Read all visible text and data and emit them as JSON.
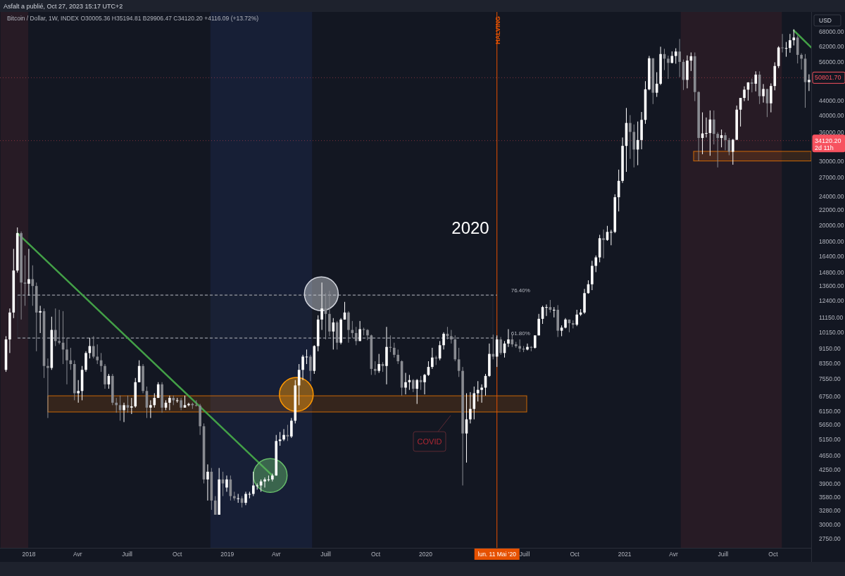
{
  "chart_data": {
    "type": "candlestick",
    "title": "Asfalt a publié, Oct 27, 2023 15:17 UTC+2",
    "subtitle": "Bitcoin / Dollar, 1W, INDEX  O30005.36  H35194.81  B29906.47  C34120.20  +4116.09 (+13.72%)",
    "ylabel": "USD",
    "log": true,
    "xlim": [
      "2017-11-09",
      "2021-12-10"
    ],
    "ylim": [
      2595,
      77000
    ],
    "yticks": [
      {
        "value": 2750,
        "label": "2750.00"
      },
      {
        "value": 3000,
        "label": "3000.00"
      },
      {
        "value": 3280,
        "label": "3280.00"
      },
      {
        "value": 3580,
        "label": "3580.00"
      },
      {
        "value": 3900,
        "label": "3900.00"
      },
      {
        "value": 4250,
        "label": "4250.00"
      },
      {
        "value": 4650,
        "label": "4650.00"
      },
      {
        "value": 5150,
        "label": "5150.00"
      },
      {
        "value": 5650,
        "label": "5650.00"
      },
      {
        "value": 6150,
        "label": "6150.00"
      },
      {
        "value": 6750,
        "label": "6750.00"
      },
      {
        "value": 7550,
        "label": "7550.00"
      },
      {
        "value": 8350,
        "label": "8350.00"
      },
      {
        "value": 9150,
        "label": "9150.00"
      },
      {
        "value": 10150,
        "label": "10150.00"
      },
      {
        "value": 11150,
        "label": "11150.00"
      },
      {
        "value": 12400,
        "label": "12400.00"
      },
      {
        "value": 13600,
        "label": "13600.00"
      },
      {
        "value": 14800,
        "label": "14800.00"
      },
      {
        "value": 16400,
        "label": "16400.00"
      },
      {
        "value": 18000,
        "label": "18000.00"
      },
      {
        "value": 20000,
        "label": "20000.00"
      },
      {
        "value": 22000,
        "label": "22000.00"
      },
      {
        "value": 24000,
        "label": "24000.00"
      },
      {
        "value": 27000,
        "label": "27000.00"
      },
      {
        "value": 30000,
        "label": "30000.00"
      },
      {
        "value": 36000,
        "label": "36000.00"
      },
      {
        "value": 40000,
        "label": "40000.00"
      },
      {
        "value": 44000,
        "label": "44000.00"
      },
      {
        "value": 56000,
        "label": "56000.00"
      },
      {
        "value": 62000,
        "label": "62000.00"
      },
      {
        "value": 68000,
        "label": "68000.00"
      }
    ],
    "xticks": [
      {
        "value": "2018-01-01",
        "label": "2018"
      },
      {
        "value": "2018-04-01",
        "label": "Avr"
      },
      {
        "value": "2018-07-01",
        "label": "Juill"
      },
      {
        "value": "2018-10-01",
        "label": "Oct"
      },
      {
        "value": "2019-01-01",
        "label": "2019"
      },
      {
        "value": "2019-04-01",
        "label": "Avr"
      },
      {
        "value": "2019-07-01",
        "label": "Juill"
      },
      {
        "value": "2019-10-01",
        "label": "Oct"
      },
      {
        "value": "2020-01-01",
        "label": "2020"
      },
      {
        "value": "2020-04-01",
        "label": null
      },
      {
        "value": "2020-07-01",
        "label": "Juill"
      },
      {
        "value": "2020-10-01",
        "label": "Oct"
      },
      {
        "value": "2021-01-01",
        "label": "2021"
      },
      {
        "value": "2021-04-01",
        "label": "Avr"
      },
      {
        "value": "2021-07-01",
        "label": "Juill"
      },
      {
        "value": "2021-10-01",
        "label": "Oct"
      }
    ],
    "x": [
      "2017-11-20",
      "2017-11-27",
      "2017-12-04",
      "2017-12-11",
      "2017-12-18",
      "2017-12-25",
      "2018-01-01",
      "2018-01-08",
      "2018-01-15",
      "2018-01-22",
      "2018-01-29",
      "2018-02-05",
      "2018-02-12",
      "2018-02-19",
      "2018-02-26",
      "2018-03-05",
      "2018-03-12",
      "2018-03-19",
      "2018-03-26",
      "2018-04-02",
      "2018-04-09",
      "2018-04-16",
      "2018-04-23",
      "2018-04-30",
      "2018-05-07",
      "2018-05-14",
      "2018-05-21",
      "2018-05-28",
      "2018-06-04",
      "2018-06-11",
      "2018-06-18",
      "2018-06-25",
      "2018-07-02",
      "2018-07-09",
      "2018-07-16",
      "2018-07-23",
      "2018-07-30",
      "2018-08-06",
      "2018-08-13",
      "2018-08-20",
      "2018-08-27",
      "2018-09-03",
      "2018-09-10",
      "2018-09-17",
      "2018-09-24",
      "2018-10-01",
      "2018-10-08",
      "2018-10-15",
      "2018-10-22",
      "2018-10-29",
      "2018-11-05",
      "2018-11-12",
      "2018-11-19",
      "2018-11-26",
      "2018-12-03",
      "2018-12-10",
      "2018-12-17",
      "2018-12-24",
      "2018-12-31",
      "2019-01-07",
      "2019-01-14",
      "2019-01-21",
      "2019-01-28",
      "2019-02-04",
      "2019-02-11",
      "2019-02-18",
      "2019-02-25",
      "2019-03-04",
      "2019-03-11",
      "2019-03-18",
      "2019-03-25",
      "2019-04-01",
      "2019-04-08",
      "2019-04-15",
      "2019-04-22",
      "2019-04-29",
      "2019-05-06",
      "2019-05-13",
      "2019-05-20",
      "2019-05-27",
      "2019-06-03",
      "2019-06-10",
      "2019-06-17",
      "2019-06-24",
      "2019-07-01",
      "2019-07-08",
      "2019-07-15",
      "2019-07-22",
      "2019-07-29",
      "2019-08-05",
      "2019-08-12",
      "2019-08-19",
      "2019-08-26",
      "2019-09-02",
      "2019-09-09",
      "2019-09-16",
      "2019-09-23",
      "2019-09-30",
      "2019-10-07",
      "2019-10-14",
      "2019-10-21",
      "2019-10-28",
      "2019-11-04",
      "2019-11-11",
      "2019-11-18",
      "2019-11-25",
      "2019-12-02",
      "2019-12-09",
      "2019-12-16",
      "2019-12-23",
      "2019-12-30",
      "2020-01-06",
      "2020-01-13",
      "2020-01-20",
      "2020-01-27",
      "2020-02-03",
      "2020-02-10",
      "2020-02-17",
      "2020-02-24",
      "2020-03-02",
      "2020-03-09",
      "2020-03-16",
      "2020-03-23",
      "2020-03-30",
      "2020-04-06",
      "2020-04-13",
      "2020-04-20",
      "2020-04-27",
      "2020-05-04",
      "2020-05-11",
      "2020-05-18",
      "2020-05-25",
      "2020-06-01",
      "2020-06-08",
      "2020-06-15",
      "2020-06-22",
      "2020-06-29",
      "2020-07-06",
      "2020-07-13",
      "2020-07-20",
      "2020-07-27",
      "2020-08-03",
      "2020-08-10",
      "2020-08-17",
      "2020-08-24",
      "2020-08-31",
      "2020-09-07",
      "2020-09-14",
      "2020-09-21",
      "2020-09-28",
      "2020-10-05",
      "2020-10-12",
      "2020-10-19",
      "2020-10-26",
      "2020-11-02",
      "2020-11-09",
      "2020-11-16",
      "2020-11-23",
      "2020-11-30",
      "2020-12-07",
      "2020-12-14",
      "2020-12-21",
      "2020-12-28",
      "2021-01-04",
      "2021-01-11",
      "2021-01-18",
      "2021-01-25",
      "2021-02-01",
      "2021-02-08",
      "2021-02-15",
      "2021-02-22",
      "2021-03-01",
      "2021-03-08",
      "2021-03-15",
      "2021-03-22",
      "2021-03-29",
      "2021-04-05",
      "2021-04-12",
      "2021-04-19",
      "2021-04-26",
      "2021-05-03",
      "2021-05-10",
      "2021-05-17",
      "2021-05-24",
      "2021-05-31",
      "2021-06-07",
      "2021-06-14",
      "2021-06-21",
      "2021-06-28",
      "2021-07-05",
      "2021-07-12",
      "2021-07-19",
      "2021-07-26",
      "2021-08-02",
      "2021-08-09",
      "2021-08-16",
      "2021-08-23",
      "2021-08-30",
      "2021-09-06",
      "2021-09-13",
      "2021-09-20",
      "2021-09-27",
      "2021-10-04",
      "2021-10-11",
      "2021-10-18",
      "2021-10-25",
      "2021-11-01",
      "2021-11-08",
      "2021-11-15",
      "2021-11-22",
      "2021-11-29",
      "2021-12-06"
    ],
    "ohlc": [
      [
        8000,
        9900,
        7900,
        9700
      ],
      [
        9700,
        11800,
        8900,
        11500
      ],
      [
        11500,
        17200,
        11100,
        15000
      ],
      [
        15000,
        19700,
        14800,
        19000
      ],
      [
        19000,
        19200,
        11000,
        13900
      ],
      [
        13900,
        16500,
        12000,
        13800
      ],
      [
        13800,
        17200,
        12800,
        14200
      ],
      [
        14200,
        15500,
        12000,
        13600
      ],
      [
        13600,
        13900,
        9000,
        11500
      ],
      [
        11500,
        12000,
        10100,
        11600
      ],
      [
        11600,
        11800,
        7600,
        8200
      ],
      [
        8200,
        8600,
        5900,
        8100
      ],
      [
        8100,
        11200,
        8000,
        10300
      ],
      [
        10300,
        11800,
        9300,
        9600
      ],
      [
        9600,
        11700,
        9400,
        9500
      ],
      [
        9500,
        11600,
        8300,
        9100
      ],
      [
        9100,
        9800,
        7300,
        8500
      ],
      [
        8500,
        9200,
        8000,
        8300
      ],
      [
        8300,
        8500,
        6600,
        6900
      ],
      [
        6900,
        7500,
        6500,
        7000
      ],
      [
        7000,
        8200,
        6600,
        8000
      ],
      [
        8000,
        9000,
        7900,
        8900
      ],
      [
        8900,
        9800,
        8600,
        9300
      ],
      [
        9300,
        9900,
        8600,
        8700
      ],
      [
        8700,
        9400,
        8300,
        8500
      ],
      [
        8500,
        8900,
        7900,
        8200
      ],
      [
        8200,
        8300,
        7100,
        7300
      ],
      [
        7300,
        7800,
        7100,
        7700
      ],
      [
        7700,
        7800,
        6400,
        6500
      ],
      [
        6500,
        6700,
        6100,
        6400
      ],
      [
        6400,
        6800,
        5800,
        6200
      ],
      [
        6200,
        6500,
        5750,
        6400
      ],
      [
        6400,
        6800,
        6100,
        6300
      ],
      [
        6300,
        6700,
        6050,
        6350
      ],
      [
        6350,
        7600,
        6300,
        7400
      ],
      [
        7400,
        8500,
        7400,
        8200
      ],
      [
        8200,
        8300,
        6900,
        7000
      ],
      [
        7000,
        7200,
        5900,
        6300
      ],
      [
        6300,
        6600,
        5900,
        6400
      ],
      [
        6400,
        6900,
        6300,
        6700
      ],
      [
        6700,
        7400,
        6700,
        7300
      ],
      [
        7300,
        7400,
        6100,
        6300
      ],
      [
        6300,
        6600,
        6200,
        6500
      ],
      [
        6500,
        6800,
        6200,
        6700
      ],
      [
        6700,
        6800,
        6400,
        6600
      ],
      [
        6600,
        6700,
        6500,
        6600
      ],
      [
        6600,
        6700,
        6200,
        6300
      ],
      [
        6300,
        6800,
        6300,
        6400
      ],
      [
        6400,
        6500,
        6350,
        6450
      ],
      [
        6450,
        6500,
        6250,
        6400
      ],
      [
        6400,
        6600,
        6350,
        6380
      ],
      [
        6380,
        6450,
        5300,
        5600
      ],
      [
        5600,
        5700,
        3900,
        4000
      ],
      [
        4000,
        4400,
        3500,
        4200
      ],
      [
        4200,
        4300,
        3300,
        3500
      ],
      [
        3500,
        3600,
        3200,
        3200
      ],
      [
        3200,
        4300,
        3200,
        4000
      ],
      [
        4000,
        4200,
        3600,
        3900
      ],
      [
        3800,
        4100,
        3700,
        4000
      ],
      [
        4000,
        4100,
        3500,
        3600
      ],
      [
        3600,
        3700,
        3500,
        3550
      ],
      [
        3550,
        3650,
        3450,
        3550
      ],
      [
        3550,
        3600,
        3350,
        3450
      ],
      [
        3450,
        3700,
        3400,
        3650
      ],
      [
        3650,
        3700,
        3550,
        3650
      ],
      [
        3650,
        4200,
        3600,
        3850
      ],
      [
        3850,
        3900,
        3750,
        3850
      ],
      [
        3850,
        4000,
        3700,
        3950
      ],
      [
        3950,
        4050,
        3800,
        4000
      ],
      [
        4000,
        4100,
        3950,
        4000
      ],
      [
        4000,
        4150,
        3950,
        4100
      ],
      [
        4100,
        5300,
        4100,
        5100
      ],
      [
        5100,
        5400,
        4950,
        5150
      ],
      [
        5150,
        5500,
        5100,
        5300
      ],
      [
        5300,
        5650,
        5100,
        5250
      ],
      [
        5250,
        5900,
        5200,
        5800
      ],
      [
        5800,
        7500,
        5700,
        7250
      ],
      [
        7250,
        8300,
        6400,
        8000
      ],
      [
        8000,
        8800,
        7500,
        8700
      ],
      [
        8700,
        9100,
        8300,
        8700
      ],
      [
        8700,
        8800,
        7450,
        7950
      ],
      [
        7950,
        9350,
        7800,
        9300
      ],
      [
        9300,
        11300,
        9000,
        11000
      ],
      [
        11000,
        13900,
        10300,
        11800
      ],
      [
        11800,
        13000,
        9700,
        11400
      ],
      [
        11400,
        13200,
        9900,
        10200
      ],
      [
        10200,
        11100,
        9100,
        10800
      ],
      [
        10800,
        10900,
        9100,
        9500
      ],
      [
        9500,
        11100,
        9400,
        11000
      ],
      [
        11000,
        12300,
        11000,
        11500
      ],
      [
        11500,
        11600,
        9500,
        10300
      ],
      [
        10300,
        10900,
        9800,
        10100
      ],
      [
        10100,
        10500,
        9350,
        9600
      ],
      [
        9600,
        10900,
        9600,
        10350
      ],
      [
        10350,
        10450,
        9950,
        10300
      ],
      [
        10300,
        10350,
        9650,
        9950
      ],
      [
        9950,
        10000,
        7750,
        8050
      ],
      [
        8050,
        8450,
        7750,
        7950
      ],
      [
        7950,
        8850,
        7850,
        8300
      ],
      [
        8300,
        8400,
        7900,
        8200
      ],
      [
        8200,
        10500,
        7300,
        9250
      ],
      [
        9250,
        9950,
        8950,
        9200
      ],
      [
        9200,
        9500,
        8650,
        8800
      ],
      [
        8800,
        9100,
        8300,
        8450
      ],
      [
        8450,
        8500,
        6800,
        7150
      ],
      [
        7150,
        7850,
        6850,
        7400
      ],
      [
        7400,
        7750,
        7050,
        7500
      ],
      [
        7500,
        7550,
        6950,
        7100
      ],
      [
        7100,
        7550,
        6450,
        7500
      ],
      [
        7500,
        7700,
        7050,
        7400
      ],
      [
        7400,
        7800,
        6850,
        7750
      ],
      [
        7750,
        8450,
        7700,
        8150
      ],
      [
        8150,
        9200,
        8050,
        8650
      ],
      [
        8650,
        8750,
        8250,
        8600
      ],
      [
        8600,
        9600,
        8500,
        9350
      ],
      [
        9350,
        10150,
        9100,
        10050
      ],
      [
        10050,
        10500,
        9700,
        9900
      ],
      [
        9900,
        10300,
        9450,
        9700
      ],
      [
        9700,
        9950,
        8450,
        8550
      ],
      [
        8550,
        9200,
        7650,
        7950
      ],
      [
        7950,
        8150,
        3850,
        5350
      ],
      [
        5350,
        6900,
        4450,
        5850
      ],
      [
        5850,
        6950,
        5700,
        6250
      ],
      [
        6250,
        7200,
        5850,
        6900
      ],
      [
        6900,
        7450,
        6550,
        7050
      ],
      [
        7050,
        7300,
        6500,
        7150
      ],
      [
        7150,
        7800,
        6800,
        7700
      ],
      [
        7700,
        9450,
        7650,
        8850
      ],
      [
        8850,
        10000,
        8550,
        8700
      ],
      [
        8700,
        9950,
        8150,
        9700
      ],
      [
        9700,
        9850,
        8800,
        8900
      ],
      [
        8900,
        9600,
        8650,
        9450
      ],
      [
        9450,
        10350,
        9250,
        9700
      ],
      [
        9700,
        10000,
        9250,
        9400
      ],
      [
        9400,
        9550,
        9200,
        9300
      ],
      [
        9300,
        9700,
        8950,
        9150
      ],
      [
        9150,
        9300,
        8950,
        9100
      ],
      [
        9100,
        9450,
        9050,
        9250
      ],
      [
        9250,
        9300,
        9000,
        9200
      ],
      [
        9200,
        9950,
        9150,
        9950
      ],
      [
        9950,
        11400,
        9950,
        11050
      ],
      [
        11050,
        12000,
        10700,
        11900
      ],
      [
        11900,
        12100,
        11250,
        11900
      ],
      [
        11900,
        12450,
        11500,
        11700
      ],
      [
        11700,
        11900,
        11150,
        11700
      ],
      [
        11700,
        12050,
        9850,
        10250
      ],
      [
        10250,
        10600,
        9900,
        10450
      ],
      [
        10450,
        11100,
        10400,
        11000
      ],
      [
        11000,
        11000,
        10150,
        10750
      ],
      [
        10750,
        10950,
        10400,
        10650
      ],
      [
        10650,
        11700,
        10550,
        11350
      ],
      [
        11350,
        11750,
        11250,
        11500
      ],
      [
        11500,
        13350,
        11400,
        13000
      ],
      [
        13000,
        14100,
        12950,
        13750
      ],
      [
        13750,
        15950,
        13250,
        15450
      ],
      [
        15450,
        16500,
        14850,
        16300
      ],
      [
        16300,
        18800,
        15800,
        18400
      ],
      [
        18400,
        19450,
        16200,
        18200
      ],
      [
        18200,
        19900,
        18100,
        19150
      ],
      [
        19150,
        19400,
        17600,
        19150
      ],
      [
        19150,
        24300,
        19000,
        23850
      ],
      [
        23850,
        28400,
        21800,
        26450
      ],
      [
        26450,
        34800,
        26100,
        33000
      ],
      [
        33000,
        41950,
        28000,
        38150
      ],
      [
        38150,
        40100,
        30400,
        36050
      ],
      [
        36050,
        37800,
        28800,
        32250
      ],
      [
        32250,
        38500,
        29200,
        34250
      ],
      [
        34250,
        40900,
        32300,
        38900
      ],
      [
        38900,
        49700,
        37950,
        47200
      ],
      [
        47200,
        58300,
        46900,
        57450
      ],
      [
        57450,
        57450,
        43000,
        46200
      ],
      [
        46200,
        52600,
        45000,
        48900
      ],
      [
        48900,
        61800,
        48500,
        59000
      ],
      [
        59000,
        61000,
        53300,
        57300
      ],
      [
        57300,
        58400,
        50400,
        55800
      ],
      [
        55800,
        60000,
        55600,
        58300
      ],
      [
        58300,
        61200,
        55500,
        59950
      ],
      [
        59950,
        64900,
        51000,
        56150
      ],
      [
        56150,
        57000,
        47000,
        50100
      ],
      [
        50100,
        58500,
        47500,
        56600
      ],
      [
        56600,
        59600,
        53000,
        58200
      ],
      [
        58200,
        59600,
        43800,
        46400
      ],
      [
        46400,
        46600,
        30000,
        34700
      ],
      [
        34700,
        40800,
        31300,
        35700
      ],
      [
        35700,
        39500,
        34800,
        35800
      ],
      [
        35800,
        41300,
        31000,
        39000
      ],
      [
        39000,
        41300,
        33300,
        35600
      ],
      [
        35600,
        36000,
        28800,
        34700
      ],
      [
        34700,
        36600,
        32700,
        35300
      ],
      [
        35300,
        35900,
        32100,
        34250
      ],
      [
        34250,
        34700,
        31100,
        31800
      ],
      [
        31800,
        34500,
        29300,
        34300
      ],
      [
        34300,
        42600,
        34300,
        41500
      ],
      [
        41500,
        44700,
        37300,
        44700
      ],
      [
        44700,
        48100,
        43800,
        47100
      ],
      [
        47100,
        49400,
        43950,
        49300
      ],
      [
        49300,
        50500,
        46300,
        48900
      ],
      [
        48900,
        52900,
        46600,
        51800
      ],
      [
        51800,
        52900,
        43000,
        45200
      ],
      [
        45200,
        48800,
        43400,
        47300
      ],
      [
        47300,
        47300,
        39600,
        43200
      ],
      [
        43200,
        49000,
        40800,
        48200
      ],
      [
        48200,
        56000,
        46900,
        54700
      ],
      [
        54700,
        62000,
        54000,
        61500
      ],
      [
        61500,
        67000,
        59600,
        61300
      ],
      [
        61300,
        63700,
        58000,
        61300
      ],
      [
        61300,
        67000,
        59500,
        64400
      ],
      [
        64400,
        69000,
        62300,
        65500
      ],
      [
        65500,
        66300,
        55600,
        58700
      ],
      [
        58700,
        59300,
        53500,
        57300
      ],
      [
        57300,
        59000,
        42000,
        49400
      ],
      [
        49400,
        51900,
        46700,
        50100
      ]
    ],
    "colors": [
      "#ffffff",
      "#ffffff",
      "#ffffff",
      "#ffffff",
      "#898b91",
      "#898b91",
      "#ffffff",
      "#898b91",
      "#898b91",
      "#ffffff",
      "#898b91",
      "#898b91",
      "#ffffff",
      "#898b91",
      "#898b91",
      "#898b91",
      "#898b91",
      "#898b91",
      "#898b91",
      "#ffffff",
      "#ffffff",
      "#ffffff",
      "#ffffff",
      "#898b91",
      "#898b91",
      "#898b91",
      "#898b91",
      "#ffffff",
      "#898b91",
      "#898b91",
      "#898b91",
      "#ffffff",
      "#898b91",
      "#ffffff",
      "#ffffff",
      "#ffffff",
      "#898b91",
      "#898b91",
      "#ffffff",
      "#ffffff",
      "#ffffff",
      "#898b91",
      "#ffffff",
      "#ffffff",
      "#898b91",
      "#ffffff",
      "#898b91",
      "#ffffff",
      "#ffffff",
      "#898b91",
      "#898b91",
      "#898b91",
      "#898b91",
      "#ffffff",
      "#898b91",
      "#898b91",
      "#ffffff",
      "#898b91",
      "#ffffff",
      "#898b91",
      "#898b91",
      "#ffffff",
      "#898b91",
      "#ffffff",
      "#ffffff",
      "#ffffff",
      "#ffffff",
      "#ffffff",
      "#ffffff",
      "#ffffff",
      "#ffffff",
      "#ffffff",
      "#ffffff",
      "#ffffff",
      "#898b91",
      "#ffffff",
      "#ffffff",
      "#ffffff",
      "#ffffff",
      "#ffffff",
      "#898b91",
      "#ffffff",
      "#ffffff",
      "#ffffff",
      "#898b91",
      "#898b91",
      "#ffffff",
      "#898b91",
      "#ffffff",
      "#ffffff",
      "#898b91",
      "#898b91",
      "#898b91",
      "#ffffff",
      "#898b91",
      "#898b91",
      "#898b91",
      "#898b91",
      "#ffffff",
      "#898b91",
      "#ffffff",
      "#898b91",
      "#898b91",
      "#898b91",
      "#898b91",
      "#ffffff",
      "#ffffff",
      "#898b91",
      "#ffffff",
      "#898b91",
      "#ffffff",
      "#ffffff",
      "#ffffff",
      "#898b91",
      "#ffffff",
      "#ffffff",
      "#898b91",
      "#898b91",
      "#898b91",
      "#898b91",
      "#898b91",
      "#ffffff",
      "#ffffff",
      "#ffffff",
      "#ffffff",
      "#ffffff",
      "#ffffff",
      "#ffffff",
      "#898b91",
      "#ffffff",
      "#898b91",
      "#ffffff",
      "#ffffff",
      "#898b91",
      "#898b91",
      "#898b91",
      "#898b91",
      "#ffffff",
      "#898b91",
      "#ffffff",
      "#ffffff",
      "#ffffff",
      "#ffffff",
      "#898b91",
      "#ffffff",
      "#898b91",
      "#ffffff",
      "#ffffff",
      "#898b91",
      "#898b91",
      "#ffffff",
      "#ffffff",
      "#ffffff",
      "#ffffff",
      "#ffffff",
      "#ffffff",
      "#ffffff",
      "#898b91",
      "#ffffff",
      "#ffffff",
      "#ffffff",
      "#ffffff",
      "#ffffff",
      "#ffffff",
      "#898b91",
      "#898b91",
      "#ffffff",
      "#ffffff",
      "#ffffff",
      "#ffffff",
      "#898b91",
      "#ffffff",
      "#ffffff",
      "#898b91",
      "#898b91",
      "#ffffff",
      "#ffffff",
      "#898b91",
      "#898b91",
      "#ffffff",
      "#ffffff",
      "#898b91",
      "#898b91",
      "#ffffff",
      "#ffffff",
      "#ffffff",
      "#898b91",
      "#898b91",
      "#ffffff",
      "#898b91",
      "#898b91",
      "#ffffff",
      "#ffffff",
      "#ffffff",
      "#ffffff",
      "#ffffff",
      "#898b91",
      "#ffffff",
      "#898b91",
      "#ffffff",
      "#898b91",
      "#ffffff",
      "#ffffff",
      "#ffffff",
      "#898b91",
      "#ffffff",
      "#ffffff",
      "#ffffff",
      "#898b91",
      "#898b91",
      "#898b91",
      "#ffffff"
    ],
    "series": [
      {
        "type": "line",
        "color": "#43a047",
        "x": [
          "2017-12-11",
          "2019-03-25"
        ],
        "values": [
          19000,
          4100
        ]
      },
      {
        "type": "line",
        "color": "#43a047",
        "x": [
          "2021-11-08",
          "2021-12-10"
        ],
        "values": [
          68500,
          61500
        ]
      },
      {
        "type": "scatter",
        "marker": "circle",
        "color": "#d1d4dc",
        "x": [
          "2019-06-23"
        ],
        "values": [
          12950
        ]
      },
      {
        "type": "scatter",
        "marker": "circle",
        "color": "#ff9800",
        "x": [
          "2019-05-08"
        ],
        "values": [
          6850
        ]
      },
      {
        "type": "scatter",
        "marker": "circle",
        "color": "#66bb6a",
        "x": [
          "2019-03-21"
        ],
        "values": [
          4100
        ]
      }
    ],
    "bands": [
      {
        "axis": "x",
        "from": "2017-11-10",
        "to": "2017-12-31",
        "color": "#2a1c26"
      },
      {
        "axis": "x",
        "from": "2018-12-01",
        "to": "2019-06-06",
        "color": "#182038"
      },
      {
        "axis": "x",
        "from": "2021-04-14",
        "to": "2021-10-17",
        "color": "#2a1c26"
      },
      {
        "axis": "y",
        "from": 9785,
        "to": 12840,
        "color": "#2a2e39"
      },
      {
        "axis": "y",
        "from": 6130,
        "to": 6790,
        "color": "#f57c00"
      },
      {
        "axis": "y",
        "from": 30000,
        "to": 31880,
        "color": "#f57c00"
      }
    ],
    "ref_lines": [
      {
        "axis": "x",
        "value": "2020-05-11",
        "label": "HALVING",
        "color": "#e65100",
        "line_style": "solid"
      },
      {
        "axis": "y",
        "value": 12840,
        "color": "#b2b5be",
        "line_style": "dashed"
      },
      {
        "axis": "y",
        "value": 9785,
        "color": "#b2b5be",
        "line_style": "dashed"
      },
      {
        "axis": "y",
        "value": 34120.2,
        "label": "34120.20",
        "color": "#f7525f",
        "line_style": "dotted"
      },
      {
        "axis": "y",
        "value": 50801.7,
        "label": "50801.70",
        "color": "#f7525f",
        "line_style": "dotted"
      }
    ],
    "annotations": [
      "2020",
      "COVID",
      "lun. 11 Mai '20",
      "2d 11h",
      {
        "text": "76.40%",
        "x": "2020-05-11",
        "y": 12840
      },
      {
        "text": "61.80%",
        "x": "2020-05-11",
        "y": 9785
      }
    ]
  }
}
